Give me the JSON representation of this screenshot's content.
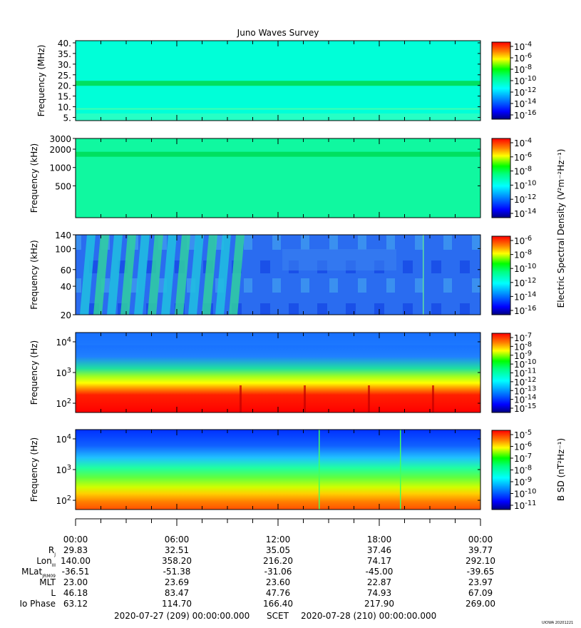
{
  "title": "Juno Waves Survey",
  "colors": {
    "colormap": [
      "#000080",
      "#0000ff",
      "#0080ff",
      "#00ffff",
      "#80ff80",
      "#00ff00",
      "#ffff00",
      "#ff8000",
      "#ff0000"
    ]
  },
  "chart_data": [
    {
      "type": "heatmap",
      "id": "p1",
      "ylabel": "Frequency (MHz)",
      "yscale": "linear",
      "ylim": [
        3.5,
        41
      ],
      "yticks": [
        "40.",
        "35.",
        "30.",
        "25.",
        "20.",
        "15.",
        "10.",
        "5."
      ],
      "ytick_values": [
        40,
        35,
        30,
        25,
        20,
        15,
        10,
        5
      ],
      "bands": [
        {
          "y": 21,
          "height": 1.5,
          "note": "strong"
        },
        {
          "y": 9,
          "height": 0.4,
          "note": "weak"
        }
      ],
      "colorbar": {
        "ticks": [
          "10",
          "10",
          "10",
          "10",
          "10",
          "10",
          "10"
        ],
        "exponents": [
          "-4",
          "-6",
          "-8",
          "-10",
          "-12",
          "-14",
          "-16"
        ],
        "label": ""
      }
    },
    {
      "type": "heatmap",
      "id": "p2",
      "ylabel": "Frequency (kHz)",
      "yscale": "log",
      "ylim": [
        150,
        3000
      ],
      "yticks": [
        "3000",
        "2000",
        "1000",
        "500"
      ],
      "ytick_values": [
        3000,
        2000,
        1000,
        500
      ],
      "bands": [
        {
          "y": 1650,
          "note": "strong"
        }
      ],
      "colorbar": {
        "ticks": [
          "10",
          "10",
          "10",
          "10",
          "10",
          "10"
        ],
        "exponents": [
          "-4",
          "-6",
          "-8",
          "-10",
          "-12",
          "-14"
        ],
        "label": "Electric Spectral Density (V²m⁻²Hz⁻¹)"
      }
    },
    {
      "type": "heatmap",
      "id": "p3",
      "ylabel": "Frequency (kHz)",
      "yscale": "log",
      "ylim": [
        20,
        140
      ],
      "yticks": [
        "140",
        "100",
        "60",
        "40",
        "20"
      ],
      "ytick_values": [
        140,
        100,
        60,
        40,
        20
      ],
      "colorbar": {
        "ticks": [
          "10",
          "10",
          "10",
          "10",
          "10",
          "10"
        ],
        "exponents": [
          "-6",
          "-8",
          "-10",
          "-12",
          "-14",
          "-16"
        ],
        "label": ""
      }
    },
    {
      "type": "heatmap",
      "id": "p4",
      "ylabel": "Frequency (Hz)",
      "yscale": "log",
      "ylim": [
        50,
        20000
      ],
      "yticks": [
        "10",
        "10",
        "10"
      ],
      "ytick_exponents": [
        "4",
        "3",
        "2"
      ],
      "ytick_values": [
        10000,
        1000,
        100
      ],
      "colorbar": {
        "ticks": [
          "10",
          "10",
          "10",
          "10",
          "10",
          "10",
          "10",
          "10",
          "10"
        ],
        "exponents": [
          "-7",
          "-8",
          "-9",
          "-10",
          "-11",
          "-12",
          "-13",
          "-14",
          "-15"
        ],
        "label": ""
      }
    },
    {
      "type": "heatmap",
      "id": "p5",
      "ylabel": "Frequency (Hz)",
      "yscale": "log",
      "ylim": [
        50,
        20000
      ],
      "yticks": [
        "10",
        "10",
        "10"
      ],
      "ytick_exponents": [
        "4",
        "3",
        "2"
      ],
      "ytick_values": [
        10000,
        1000,
        100
      ],
      "colorbar": {
        "ticks": [
          "10",
          "10",
          "10",
          "10",
          "10",
          "10",
          "10"
        ],
        "exponents": [
          "-5",
          "-6",
          "-7",
          "-8",
          "-9",
          "-10",
          "-11"
        ],
        "label": "B SD (nT²Hz⁻¹)"
      }
    }
  ],
  "time_axis": {
    "labels": [
      "00:00",
      "06:00",
      "12:00",
      "18:00",
      "00:00"
    ],
    "minor_per_major": 3
  },
  "ephemeris": {
    "rows": [
      {
        "label": "R",
        "sub": "J",
        "values": [
          "29.83",
          "32.51",
          "35.05",
          "37.46",
          "39.77"
        ]
      },
      {
        "label": "Lon",
        "sub": "III",
        "values": [
          "140.00",
          "358.20",
          "216.20",
          "74.17",
          "292.10"
        ]
      },
      {
        "label": "MLat",
        "sub": "JRM09",
        "values": [
          "-36.51",
          "-51.38",
          "-31.06",
          "-45.00",
          "-39.65"
        ]
      },
      {
        "label": "MLT",
        "sub": "",
        "values": [
          "23.00",
          "23.69",
          "23.60",
          "22.87",
          "23.97"
        ]
      },
      {
        "label": "L",
        "sub": "",
        "values": [
          "46.18",
          "83.47",
          "47.76",
          "74.93",
          "67.09"
        ]
      },
      {
        "label": "Io Phase",
        "sub": "",
        "values": [
          "63.12",
          "114.70",
          "166.40",
          "217.90",
          "269.00"
        ]
      }
    ]
  },
  "footer": {
    "start": "2020-07-27 (209) 00:00:00.000",
    "scet": "SCET",
    "end": "2020-07-28 (210) 00:00:00.000",
    "stamp": "UIOWA 20201221"
  }
}
